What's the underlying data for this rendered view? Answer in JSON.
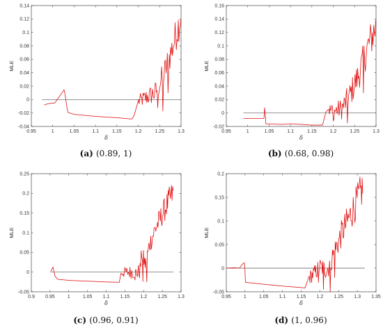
{
  "chart_data": [
    {
      "type": "line",
      "caption_letter": "(a)",
      "caption_text": "(0.89, 1)",
      "xlabel": "δ",
      "ylabel": "MLE",
      "xlim": [
        0.95,
        1.3
      ],
      "ylim": [
        -0.04,
        0.14
      ],
      "xticks": [
        0.95,
        1,
        1.05,
        1.1,
        1.15,
        1.2,
        1.25,
        1.3
      ],
      "xtick_labels": [
        "0.95",
        "1",
        "1.05",
        "1.1",
        "1.15",
        "1.2",
        "1.25",
        "1.3"
      ],
      "yticks": [
        -0.04,
        -0.02,
        0,
        0.02,
        0.04,
        0.06,
        0.08,
        0.1,
        0.12,
        0.14
      ],
      "ytick_labels": [
        "-0.04",
        "-0.02",
        "0",
        "0.02",
        "0.04",
        "0.06",
        "0.08",
        "0.1",
        "0.12",
        "0.14"
      ],
      "zero_line": [
        0.975,
        1.3
      ],
      "series": [
        {
          "color": "#e01010",
          "anchors": [
            [
              0.98,
              -0.008
            ],
            [
              0.99,
              -0.006
            ],
            [
              1.005,
              -0.005
            ],
            [
              1.015,
              0.004
            ],
            [
              1.027,
              0.015
            ],
            [
              1.035,
              -0.019
            ],
            [
              1.05,
              -0.022
            ],
            [
              1.1,
              -0.025
            ],
            [
              1.15,
              -0.027
            ],
            [
              1.185,
              -0.029
            ],
            [
              1.19,
              -0.024
            ],
            [
              1.2,
              -0.002
            ],
            [
              1.22,
              0.005
            ],
            [
              1.24,
              0.012
            ],
            [
              1.26,
              0.04
            ],
            [
              1.28,
              0.08
            ],
            [
              1.3,
              0.128
            ]
          ],
          "noise_start": 1.2,
          "noise_amp": 0.028,
          "dips": [
            [
              1.257,
              -0.017
            ],
            [
              1.245,
              -0.012
            ],
            [
              1.27,
              0.01
            ]
          ],
          "step": 0.0015
        }
      ]
    },
    {
      "type": "line",
      "caption_letter": "(b)",
      "caption_text": "(0.68, 0.98)",
      "xlabel": "δ",
      "ylabel": "MLE",
      "xlim": [
        0.95,
        1.3
      ],
      "ylim": [
        -0.02,
        0.16
      ],
      "xticks": [
        0.95,
        1,
        1.05,
        1.1,
        1.15,
        1.2,
        1.25,
        1.3
      ],
      "xtick_labels": [
        "0.95",
        "1",
        "1.05",
        "1.1",
        "1.15",
        "1.2",
        "1.25",
        "1.3"
      ],
      "yticks": [
        -0.02,
        0,
        0.02,
        0.04,
        0.06,
        0.08,
        0.1,
        0.12,
        0.14,
        0.16
      ],
      "ytick_labels": [
        "-0.02",
        "0",
        "0.02",
        "0.04",
        "0.06",
        "0.08",
        "0.1",
        "0.12",
        "0.14",
        "0.16"
      ],
      "zero_line": [
        0.99,
        1.3
      ],
      "series": [
        {
          "color": "#e01010",
          "anchors": [
            [
              0.99,
              -0.008
            ],
            [
              1.03,
              -0.008
            ],
            [
              1.038,
              -0.008
            ],
            [
              1.04,
              0.013
            ],
            [
              1.042,
              -0.016
            ],
            [
              1.08,
              -0.017
            ],
            [
              1.1,
              -0.016
            ],
            [
              1.15,
              -0.018
            ],
            [
              1.175,
              -0.018
            ],
            [
              1.183,
              0.002
            ],
            [
              1.19,
              0.006
            ],
            [
              1.2,
              0.004
            ],
            [
              1.22,
              0.008
            ],
            [
              1.24,
              0.03
            ],
            [
              1.26,
              0.06
            ],
            [
              1.28,
              0.1
            ],
            [
              1.3,
              0.132
            ]
          ],
          "noise_start": 1.19,
          "noise_amp": 0.03,
          "dips": [
            [
              1.2,
              -0.012
            ],
            [
              1.233,
              -0.015
            ],
            [
              1.27,
              0.03
            ]
          ],
          "step": 0.0015
        }
      ]
    },
    {
      "type": "line",
      "caption_letter": "(c)",
      "caption_text": "(0.96, 0.91)",
      "xlabel": "δ",
      "ylabel": "MLE",
      "xlim": [
        0.9,
        1.3
      ],
      "ylim": [
        -0.05,
        0.25
      ],
      "xticks": [
        0.9,
        0.95,
        1,
        1.05,
        1.1,
        1.15,
        1.2,
        1.25,
        1.3
      ],
      "xtick_labels": [
        "0.9",
        "0.95",
        "1",
        "1.05",
        "1.1",
        "1.15",
        "1.2",
        "1.25",
        "1.3"
      ],
      "yticks": [
        -0.05,
        0,
        0.05,
        0.1,
        0.15,
        0.2,
        0.25
      ],
      "ytick_labels": [
        "-0.05",
        "0",
        "0.05",
        "0.1",
        "0.15",
        "0.2",
        "0.25"
      ],
      "zero_line": [
        0.95,
        1.28
      ],
      "series": [
        {
          "color": "#e01010",
          "anchors": [
            [
              0.952,
              0.002
            ],
            [
              0.958,
              0.013
            ],
            [
              0.963,
              -0.01
            ],
            [
              0.97,
              -0.018
            ],
            [
              1.0,
              -0.021
            ],
            [
              1.05,
              -0.023
            ],
            [
              1.1,
              -0.025
            ],
            [
              1.135,
              -0.026
            ],
            [
              1.14,
              0.0
            ],
            [
              1.17,
              0.002
            ],
            [
              1.18,
              0.0
            ],
            [
              1.19,
              0.004
            ],
            [
              1.195,
              0.05
            ],
            [
              1.205,
              0.02
            ],
            [
              1.215,
              0.07
            ],
            [
              1.23,
              0.11
            ],
            [
              1.25,
              0.15
            ],
            [
              1.27,
              0.19
            ],
            [
              1.28,
              0.205
            ]
          ],
          "noise_start": 1.14,
          "noise_amp": 0.035,
          "dips": [
            [
              1.177,
              -0.02
            ],
            [
              1.198,
              -0.024
            ],
            [
              1.208,
              -0.025
            ]
          ],
          "step": 0.0015
        }
      ]
    },
    {
      "type": "line",
      "caption_letter": "(d)",
      "caption_text": "(1, 0.96)",
      "xlabel": "δ",
      "ylabel": "MLE",
      "xlim": [
        0.95,
        1.35
      ],
      "ylim": [
        -0.05,
        0.2
      ],
      "xticks": [
        0.95,
        1,
        1.05,
        1.1,
        1.15,
        1.2,
        1.25,
        1.3,
        1.35
      ],
      "xtick_labels": [
        "0.95",
        "1",
        "1.05",
        "1.1",
        "1.15",
        "1.2",
        "1.25",
        "1.3",
        "1.35"
      ],
      "yticks": [
        -0.05,
        0,
        0.05,
        0.1,
        0.15,
        0.2
      ],
      "ytick_labels": [
        "-0.05",
        "0",
        "0.05",
        "0.1",
        "0.15",
        "0.2"
      ],
      "zero_line": [
        0.95,
        1.32
      ],
      "series": [
        {
          "color": "#e01010",
          "anchors": [
            [
              0.95,
              0.0
            ],
            [
              0.97,
              0.001
            ],
            [
              0.985,
              0.0
            ],
            [
              0.995,
              0.01
            ],
            [
              0.999,
              0.012
            ],
            [
              1.001,
              -0.03
            ],
            [
              1.05,
              -0.034
            ],
            [
              1.1,
              -0.038
            ],
            [
              1.15,
              -0.041
            ],
            [
              1.16,
              -0.042
            ],
            [
              1.17,
              -0.02
            ],
            [
              1.19,
              -0.005
            ],
            [
              1.2,
              0.005
            ],
            [
              1.22,
              0.0
            ],
            [
              1.24,
              0.04
            ],
            [
              1.26,
              0.08
            ],
            [
              1.29,
              0.13
            ],
            [
              1.31,
              0.165
            ],
            [
              1.315,
              0.175
            ]
          ],
          "noise_start": 1.17,
          "noise_amp": 0.04,
          "dips": [
            [
              1.196,
              -0.03
            ],
            [
              1.21,
              -0.045
            ],
            [
              1.228,
              -0.05
            ],
            [
              1.24,
              -0.02
            ]
          ],
          "step": 0.0015
        }
      ]
    }
  ]
}
